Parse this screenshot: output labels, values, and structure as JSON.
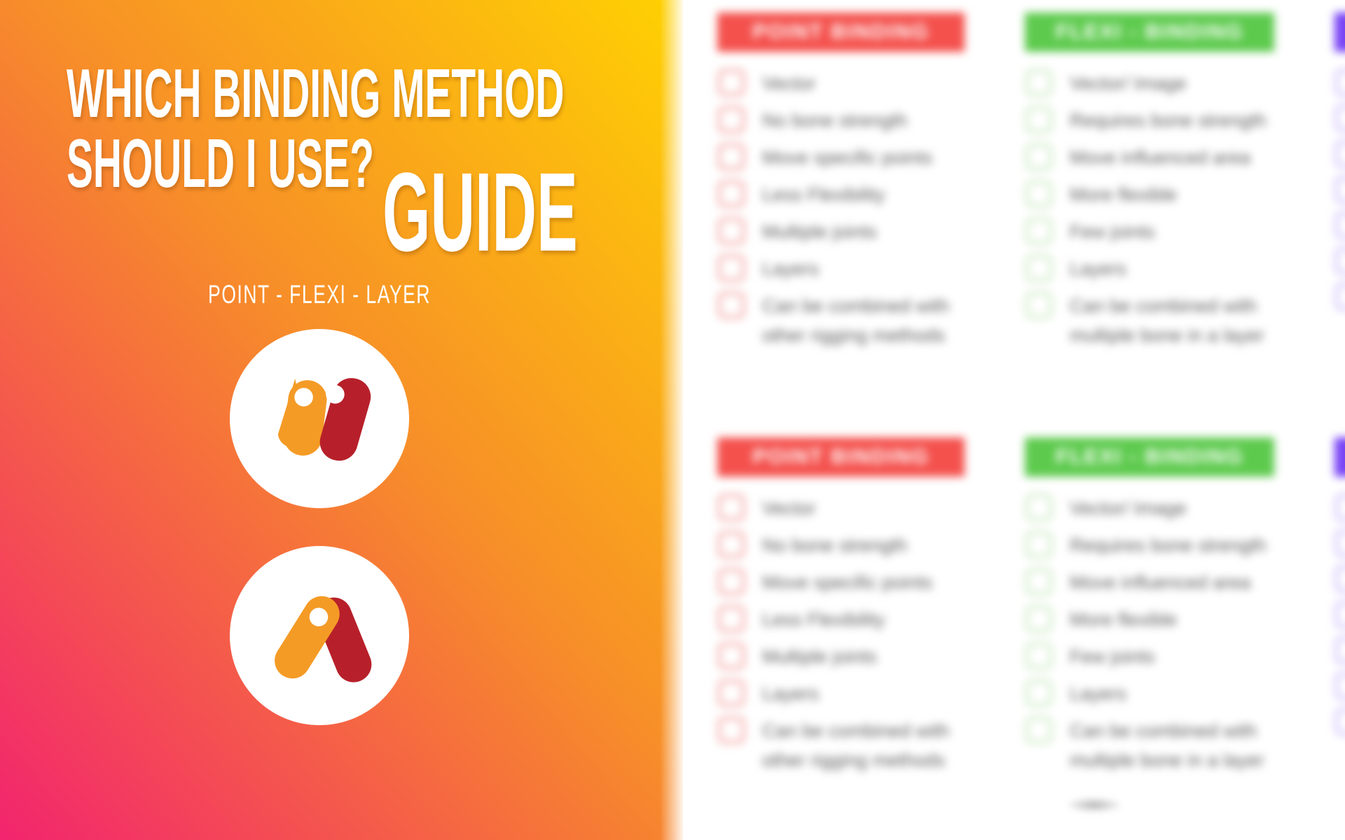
{
  "poster": {
    "title_line1": "WHICH BINDING METHOD",
    "title_line2": "SHOULD I USE?",
    "title_big": "GUIDE",
    "subtitle": "POINT - FLEXI - LAYER"
  },
  "brand": {
    "logo_orange": "#f49b26",
    "logo_red": "#b7202a",
    "gradient_pink": "#f2246e",
    "gradient_orange": "#f78e29",
    "gradient_yellow": "#ffd400"
  },
  "checklist": {
    "label_color": "#5a5a5a",
    "sections": [
      {
        "id": "top",
        "columns": [
          {
            "key": "point",
            "header": "POINT BINDING",
            "header_color": "#f4514d",
            "checkbox_color": "#f6bdbb",
            "items": [
              "Vector",
              "No bone strength",
              "Move specific points",
              "Less Flexibility",
              "Multiple joints",
              "Layers",
              "Can be combined with other rigging methods"
            ]
          },
          {
            "key": "flexi",
            "header": "FLEXI - BINDING",
            "header_color": "#5dca4d",
            "checkbox_color": "#d9efd2",
            "items": [
              "Vector/ Image",
              "Requires bone strength",
              "Move influenced area",
              "More flexible",
              "Few joints",
              "Layers",
              "Can be combined with multiple bone in a layer"
            ]
          },
          {
            "key": "layer",
            "header": "",
            "header_color": "#7a45f5",
            "checkbox_color": "#d9ccfb",
            "items": [
              "",
              "",
              "",
              "",
              "",
              "",
              ""
            ]
          }
        ]
      },
      {
        "id": "bottom",
        "columns": [
          {
            "key": "point",
            "header": "POINT BINDING",
            "header_color": "#f4514d",
            "checkbox_color": "#f6bdbb",
            "items": [
              "Vector",
              "No bone strength",
              "Move specific points",
              "Less Flexibility",
              "Multiple joints",
              "Layers",
              "Can be combined with other rigging methods"
            ]
          },
          {
            "key": "flexi",
            "header": "FLEXI - BINDING",
            "header_color": "#5dca4d",
            "checkbox_color": "#d9efd2",
            "items": [
              "Vector/ Image",
              "Requires bone strength",
              "Move influenced area",
              "More flexible",
              "Few joints",
              "Layers",
              "Can be combined with multiple bone in a layer"
            ]
          },
          {
            "key": "layer",
            "header": "",
            "header_color": "#7a45f5",
            "checkbox_color": "#d9ccfb",
            "items": [
              "",
              "",
              "",
              "",
              "",
              "",
              ""
            ]
          }
        ]
      }
    ]
  }
}
